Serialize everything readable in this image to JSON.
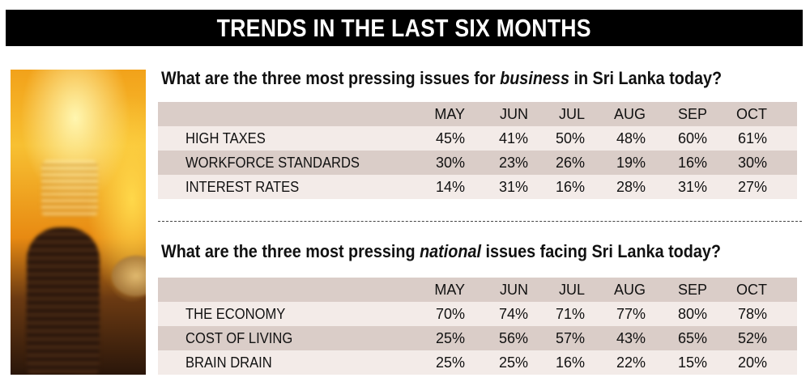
{
  "banner": {
    "title": "TRENDS IN THE LAST SIX MONTHS"
  },
  "image": {
    "description": "flames-over-coin-stacks-photo"
  },
  "sections": [
    {
      "question": {
        "before": "What are the three most pressing issues for ",
        "emphasis": "business",
        "after": " in Sri Lanka today?"
      },
      "columns": [
        "MAY",
        "JUN",
        "JUL",
        "AUG",
        "SEP",
        "OCT"
      ],
      "rows": [
        {
          "label": "HIGH TAXES",
          "values": [
            "45%",
            "41%",
            "50%",
            "48%",
            "60%",
            "61%"
          ]
        },
        {
          "label": "WORKFORCE STANDARDS",
          "values": [
            "30%",
            "23%",
            "26%",
            "19%",
            "16%",
            "30%"
          ]
        },
        {
          "label": "INTEREST RATES",
          "values": [
            "14%",
            "31%",
            "16%",
            "28%",
            "31%",
            "27%"
          ]
        }
      ]
    },
    {
      "question": {
        "before": "What are the three most pressing ",
        "emphasis": "national",
        "after": " issues facing Sri Lanka today?"
      },
      "columns": [
        "MAY",
        "JUN",
        "JUL",
        "AUG",
        "SEP",
        "OCT"
      ],
      "rows": [
        {
          "label": "THE ECONOMY",
          "values": [
            "70%",
            "74%",
            "71%",
            "77%",
            "80%",
            "78%"
          ]
        },
        {
          "label": "COST OF LIVING",
          "values": [
            "25%",
            "56%",
            "57%",
            "43%",
            "65%",
            "52%"
          ]
        },
        {
          "label": "BRAIN DRAIN",
          "values": [
            "25%",
            "25%",
            "16%",
            "22%",
            "15%",
            "20%"
          ]
        }
      ]
    }
  ],
  "colors": {
    "banner_bg": "#000000",
    "row_dark": "#dacdc8",
    "row_light": "#f3ebe8"
  }
}
